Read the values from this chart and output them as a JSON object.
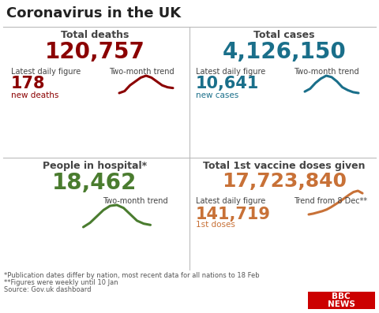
{
  "title": "Coronavirus in the UK",
  "bg_color": "#ffffff",
  "title_color": "#222222",
  "panels": [
    {
      "label": "Total deaths",
      "total": "120,757",
      "total_color": "#8b0000",
      "sub_label": "Latest daily figure",
      "sub_label2": "Two-month trend",
      "daily": "178",
      "daily_sub": "new deaths",
      "daily_color": "#8b0000",
      "trend_color": "#8b0000",
      "trend_x": [
        0,
        1,
        2,
        3,
        4,
        5,
        6,
        7,
        8,
        9,
        10
      ],
      "trend_y": [
        2.5,
        3.0,
        4.5,
        5.5,
        6.5,
        7.0,
        6.5,
        5.5,
        4.5,
        4.0,
        3.8
      ]
    },
    {
      "label": "Total cases",
      "total": "4,126,150",
      "total_color": "#1a6f8a",
      "sub_label": "Latest daily figure",
      "sub_label2": "Two-month trend",
      "daily": "10,641",
      "daily_sub": "new cases",
      "daily_color": "#1a6f8a",
      "trend_color": "#1a6f8a",
      "trend_x": [
        0,
        1,
        2,
        3,
        4,
        5,
        6,
        7,
        8,
        9,
        10
      ],
      "trend_y": [
        2,
        3,
        5,
        6.5,
        7.5,
        7.0,
        5.5,
        3.5,
        2.5,
        1.8,
        1.5
      ]
    },
    {
      "label": "People in hospital*",
      "total": "18,462",
      "total_color": "#4a7c2f",
      "sub_label2": "Two-month trend",
      "trend_color": "#4a7c2f",
      "trend_x": [
        0,
        1,
        2,
        3,
        4,
        5,
        6,
        7,
        8,
        9,
        10
      ],
      "trend_y": [
        2,
        3,
        4.5,
        6,
        7,
        7.2,
        6.5,
        5,
        3.5,
        2.8,
        2.5
      ]
    },
    {
      "label": "Total 1st vaccine doses given",
      "total": "17,723,840",
      "total_color": "#c87137",
      "sub_label": "Latest daily figure",
      "sub_label2": "Trend from 8 Dec**",
      "daily": "141,719",
      "daily_sub": "1st doses",
      "daily_color": "#c87137",
      "trend_color": "#c87137",
      "trend_x": [
        0,
        1,
        2,
        3,
        4,
        5,
        6,
        7,
        8,
        9,
        10,
        11,
        12
      ],
      "trend_y": [
        1,
        1.2,
        1.5,
        1.8,
        2.2,
        2.8,
        3.5,
        4.2,
        5.0,
        5.8,
        6.5,
        6.8,
        6.2
      ]
    }
  ],
  "footnotes": [
    "*Publication dates differ by nation, most recent data for all nations to 18 Feb",
    "**Figures were weekly until 10 Jan",
    "Source: Gov.uk dashboard"
  ],
  "footnote_color": "#555555",
  "bbc_color": "#cc0000",
  "divider_color": "#bbbbbb",
  "label_color": "#444444"
}
